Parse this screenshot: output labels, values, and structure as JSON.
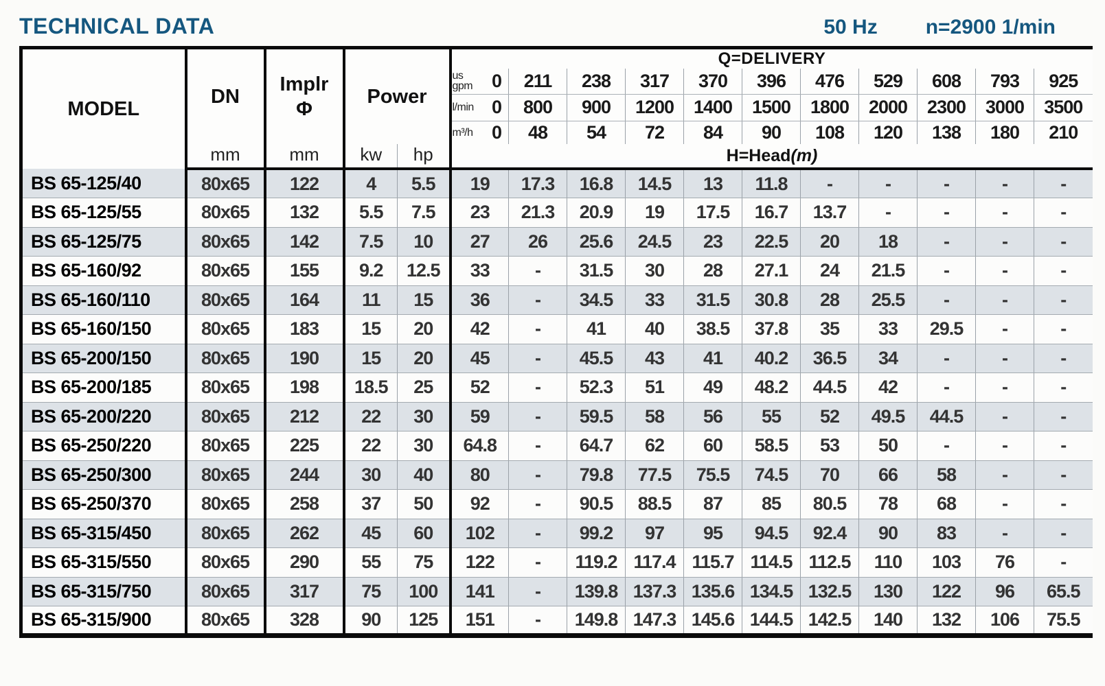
{
  "page": {
    "title": "TECHNICAL DATA",
    "frequency": "50 Hz",
    "speed": "n=2900 1/min"
  },
  "table": {
    "headers": {
      "model": "MODEL",
      "dn": "DN",
      "implr_line1": "Implr",
      "implr_line2": "Φ",
      "power": "Power",
      "dn_unit": "mm",
      "implr_unit": "mm",
      "kw": "kw",
      "hp": "hp",
      "delivery": "Q=DELIVERY",
      "head_label": "H=Head",
      "head_unit": "(m)"
    },
    "unit_rows": [
      {
        "label_top": "us",
        "label": "gpm",
        "zero": "0",
        "values": [
          "211",
          "238",
          "317",
          "370",
          "396",
          "476",
          "529",
          "608",
          "793",
          "925"
        ]
      },
      {
        "label_top": "",
        "label": "l/min",
        "zero": "0",
        "values": [
          "800",
          "900",
          "1200",
          "1400",
          "1500",
          "1800",
          "2000",
          "2300",
          "3000",
          "3500"
        ]
      },
      {
        "label_top": "",
        "label": "m³/h",
        "zero": "0",
        "values": [
          "48",
          "54",
          "72",
          "84",
          "90",
          "108",
          "120",
          "138",
          "180",
          "210"
        ]
      }
    ],
    "rows": [
      {
        "model": "BS 65-125/40",
        "dn": "80x65",
        "implr": "122",
        "kw": "4",
        "hp": "5.5",
        "head": [
          "19",
          "17.3",
          "16.8",
          "14.5",
          "13",
          "11.8",
          "-",
          "-",
          "-",
          "-",
          "-"
        ]
      },
      {
        "model": "BS 65-125/55",
        "dn": "80x65",
        "implr": "132",
        "kw": "5.5",
        "hp": "7.5",
        "head": [
          "23",
          "21.3",
          "20.9",
          "19",
          "17.5",
          "16.7",
          "13.7",
          "-",
          "-",
          "-",
          "-"
        ]
      },
      {
        "model": "BS 65-125/75",
        "dn": "80x65",
        "implr": "142",
        "kw": "7.5",
        "hp": "10",
        "head": [
          "27",
          "26",
          "25.6",
          "24.5",
          "23",
          "22.5",
          "20",
          "18",
          "-",
          "-",
          "-"
        ]
      },
      {
        "model": "BS 65-160/92",
        "dn": "80x65",
        "implr": "155",
        "kw": "9.2",
        "hp": "12.5",
        "head": [
          "33",
          "-",
          "31.5",
          "30",
          "28",
          "27.1",
          "24",
          "21.5",
          "-",
          "-",
          "-"
        ]
      },
      {
        "model": "BS 65-160/110",
        "dn": "80x65",
        "implr": "164",
        "kw": "11",
        "hp": "15",
        "head": [
          "36",
          "-",
          "34.5",
          "33",
          "31.5",
          "30.8",
          "28",
          "25.5",
          "-",
          "-",
          "-"
        ]
      },
      {
        "model": "BS 65-160/150",
        "dn": "80x65",
        "implr": "183",
        "kw": "15",
        "hp": "20",
        "head": [
          "42",
          "-",
          "41",
          "40",
          "38.5",
          "37.8",
          "35",
          "33",
          "29.5",
          "-",
          "-"
        ]
      },
      {
        "model": "BS 65-200/150",
        "dn": "80x65",
        "implr": "190",
        "kw": "15",
        "hp": "20",
        "head": [
          "45",
          "-",
          "45.5",
          "43",
          "41",
          "40.2",
          "36.5",
          "34",
          "-",
          "-",
          "-"
        ]
      },
      {
        "model": "BS 65-200/185",
        "dn": "80x65",
        "implr": "198",
        "kw": "18.5",
        "hp": "25",
        "head": [
          "52",
          "-",
          "52.3",
          "51",
          "49",
          "48.2",
          "44.5",
          "42",
          "-",
          "-",
          "-"
        ]
      },
      {
        "model": "BS 65-200/220",
        "dn": "80x65",
        "implr": "212",
        "kw": "22",
        "hp": "30",
        "head": [
          "59",
          "-",
          "59.5",
          "58",
          "56",
          "55",
          "52",
          "49.5",
          "44.5",
          "-",
          "-"
        ]
      },
      {
        "model": "BS 65-250/220",
        "dn": "80x65",
        "implr": "225",
        "kw": "22",
        "hp": "30",
        "head": [
          "64.8",
          "-",
          "64.7",
          "62",
          "60",
          "58.5",
          "53",
          "50",
          "-",
          "-",
          "-"
        ]
      },
      {
        "model": "BS 65-250/300",
        "dn": "80x65",
        "implr": "244",
        "kw": "30",
        "hp": "40",
        "head": [
          "80",
          "-",
          "79.8",
          "77.5",
          "75.5",
          "74.5",
          "70",
          "66",
          "58",
          "-",
          "-"
        ]
      },
      {
        "model": "BS 65-250/370",
        "dn": "80x65",
        "implr": "258",
        "kw": "37",
        "hp": "50",
        "head": [
          "92",
          "-",
          "90.5",
          "88.5",
          "87",
          "85",
          "80.5",
          "78",
          "68",
          "-",
          "-"
        ]
      },
      {
        "model": "BS 65-315/450",
        "dn": "80x65",
        "implr": "262",
        "kw": "45",
        "hp": "60",
        "head": [
          "102",
          "-",
          "99.2",
          "97",
          "95",
          "94.5",
          "92.4",
          "90",
          "83",
          "-",
          "-"
        ]
      },
      {
        "model": "BS 65-315/550",
        "dn": "80x65",
        "implr": "290",
        "kw": "55",
        "hp": "75",
        "head": [
          "122",
          "-",
          "119.2",
          "117.4",
          "115.7",
          "114.5",
          "112.5",
          "110",
          "103",
          "76",
          "-"
        ]
      },
      {
        "model": "BS 65-315/750",
        "dn": "80x65",
        "implr": "317",
        "kw": "75",
        "hp": "100",
        "head": [
          "141",
          "-",
          "139.8",
          "137.3",
          "135.6",
          "134.5",
          "132.5",
          "130",
          "122",
          "96",
          "65.5"
        ]
      },
      {
        "model": "BS 65-315/900",
        "dn": "80x65",
        "implr": "328",
        "kw": "90",
        "hp": "125",
        "head": [
          "151",
          "-",
          "149.8",
          "147.3",
          "145.6",
          "144.5",
          "142.5",
          "140",
          "132",
          "106",
          "75.5"
        ]
      }
    ]
  },
  "colors": {
    "accent_blue": "#15577f",
    "stripe": "#dde2e7"
  }
}
